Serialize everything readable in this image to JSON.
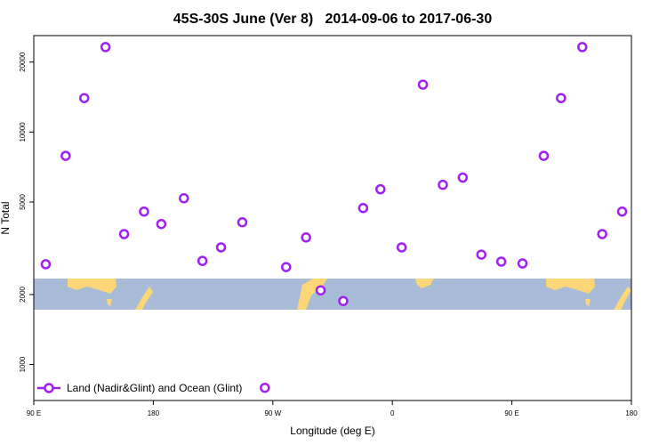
{
  "chart_data": {
    "type": "scatter",
    "title": "45S-30S June (Ver 8)   2014-09-06 to 2017-06-30",
    "x_label": "Longitude (deg E)",
    "y_label": "N Total",
    "log_y": true,
    "legend_position": "bottom-left",
    "xlim": [
      90,
      540
    ],
    "xticks": [
      {
        "value": 90,
        "label": "90 E"
      },
      180,
      {
        "value": 270,
        "label": "90 W"
      },
      {
        "value": 360,
        "label": "0"
      },
      {
        "value": 450,
        "label": "90 E"
      },
      {
        "value": 540,
        "label": "180"
      }
    ],
    "ylim": [
      700,
      26000
    ],
    "yticks": [
      1000,
      2000,
      5000,
      10000,
      20000
    ],
    "series": [
      {
        "name": "Land (Nadir&Glint) and Ocean (Glint)",
        "color": "#a020f0",
        "x": [
          99,
          114,
          128,
          144,
          158,
          173,
          186,
          203,
          217,
          231,
          247,
          264,
          280,
          295,
          306,
          323,
          338,
          351,
          367,
          383,
          398,
          413,
          427,
          442,
          458,
          474,
          487,
          503,
          518,
          533
        ],
        "values": [
          2700,
          7900,
          14000,
          23200,
          3640,
          4550,
          4020,
          5190,
          2790,
          3190,
          4090,
          794,
          2625,
          3520,
          2085,
          1875,
          4710,
          5675,
          3190,
          16000,
          5930,
          6370,
          2970,
          2770,
          2720,
          7900,
          14000,
          23200,
          3640,
          4550
        ]
      }
    ]
  }
}
